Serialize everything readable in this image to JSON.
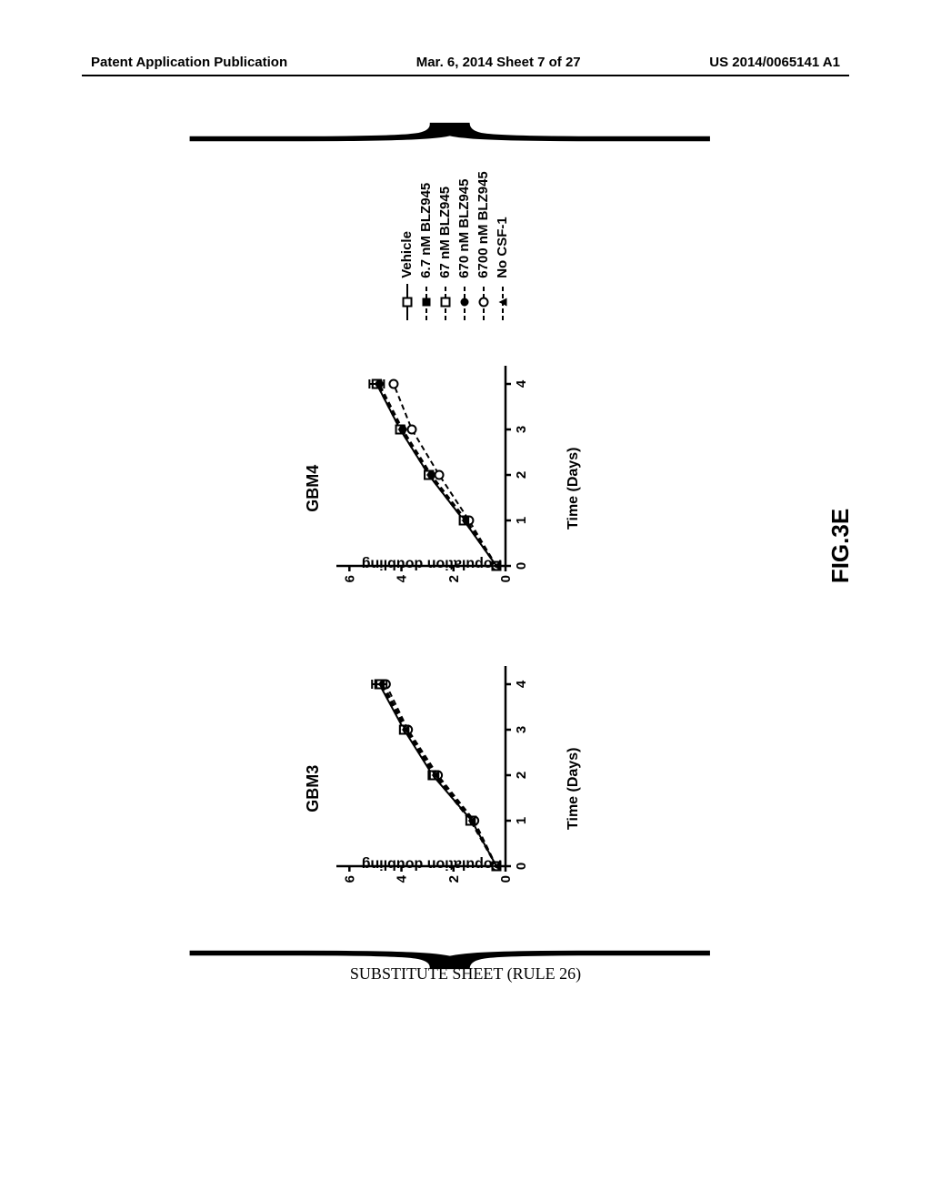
{
  "header": {
    "left": "Patent Application Publication",
    "center": "Mar. 6, 2014  Sheet 7 of 27",
    "right": "US 2014/0065141 A1"
  },
  "figure": {
    "label": "FIG.3E",
    "substitute_sheet": "SUBSTITUTE SHEET (RULE 26)",
    "y_axis_label": "Population doubling",
    "x_axis_label": "Time (Days)",
    "y_ticks": [
      0,
      2,
      4,
      6
    ],
    "x_ticks": [
      0,
      1,
      2,
      3,
      4
    ],
    "ylim": [
      0,
      6.5
    ],
    "xlim": [
      0,
      4.4
    ],
    "axis_color": "#000000",
    "line_width": 2,
    "text_color": "#000000",
    "background": "#ffffff"
  },
  "charts": [
    {
      "title": "GBM3",
      "series": [
        {
          "name": "Vehicle",
          "marker": "open-square",
          "dash": "solid",
          "y": [
            0.35,
            1.3,
            2.8,
            3.9,
            4.85
          ]
        },
        {
          "name": "6.7 nM BLZ945",
          "marker": "filled-square",
          "dash": "dash",
          "y": [
            0.35,
            1.3,
            2.7,
            3.85,
            4.75
          ]
        },
        {
          "name": "67 nM BLZ945",
          "marker": "open-square",
          "dash": "dash",
          "y": [
            0.35,
            1.35,
            2.75,
            3.9,
            4.8
          ]
        },
        {
          "name": "670 nM BLZ945",
          "marker": "filled-circle",
          "dash": "dash",
          "y": [
            0.35,
            1.25,
            2.65,
            3.8,
            4.7
          ]
        },
        {
          "name": "6700 nM BLZ945",
          "marker": "open-circle",
          "dash": "dash",
          "y": [
            0.35,
            1.2,
            2.6,
            3.75,
            4.6
          ]
        },
        {
          "name": "No CSF-1",
          "marker": "filled-triangle",
          "dash": "dash",
          "y": [
            0.35,
            1.3,
            2.7,
            3.85,
            4.8
          ]
        }
      ]
    },
    {
      "title": "GBM4",
      "series": [
        {
          "name": "Vehicle",
          "marker": "open-square",
          "dash": "solid",
          "y": [
            0.35,
            1.6,
            2.95,
            4.05,
            4.95
          ]
        },
        {
          "name": "6.7 nM BLZ945",
          "marker": "filled-square",
          "dash": "dash",
          "y": [
            0.35,
            1.55,
            2.9,
            4.0,
            4.9
          ]
        },
        {
          "name": "67 nM BLZ945",
          "marker": "open-square",
          "dash": "dash",
          "y": [
            0.35,
            1.6,
            2.95,
            4.05,
            4.95
          ]
        },
        {
          "name": "670 nM BLZ945",
          "marker": "filled-circle",
          "dash": "dash",
          "y": [
            0.35,
            1.5,
            2.85,
            3.95,
            4.85
          ]
        },
        {
          "name": "6700 nM BLZ945",
          "marker": "open-circle",
          "dash": "dash",
          "y": [
            0.35,
            1.4,
            2.55,
            3.6,
            4.3
          ]
        },
        {
          "name": "No CSF-1",
          "marker": "filled-triangle",
          "dash": "dash",
          "y": [
            0.35,
            1.55,
            2.9,
            4.0,
            4.9
          ]
        }
      ]
    }
  ],
  "legend": {
    "items": [
      {
        "label": "Vehicle",
        "marker": "open-square",
        "dash": "solid"
      },
      {
        "label": "6.7 nM BLZ945",
        "marker": "filled-square",
        "dash": "dash"
      },
      {
        "label": "67 nM BLZ945",
        "marker": "open-square",
        "dash": "dash"
      },
      {
        "label": "670 nM BLZ945",
        "marker": "filled-circle",
        "dash": "dash"
      },
      {
        "label": "6700 nM BLZ945",
        "marker": "open-circle",
        "dash": "dash"
      },
      {
        "label": "No CSF-1",
        "marker": "filled-triangle",
        "dash": "dash"
      }
    ]
  }
}
